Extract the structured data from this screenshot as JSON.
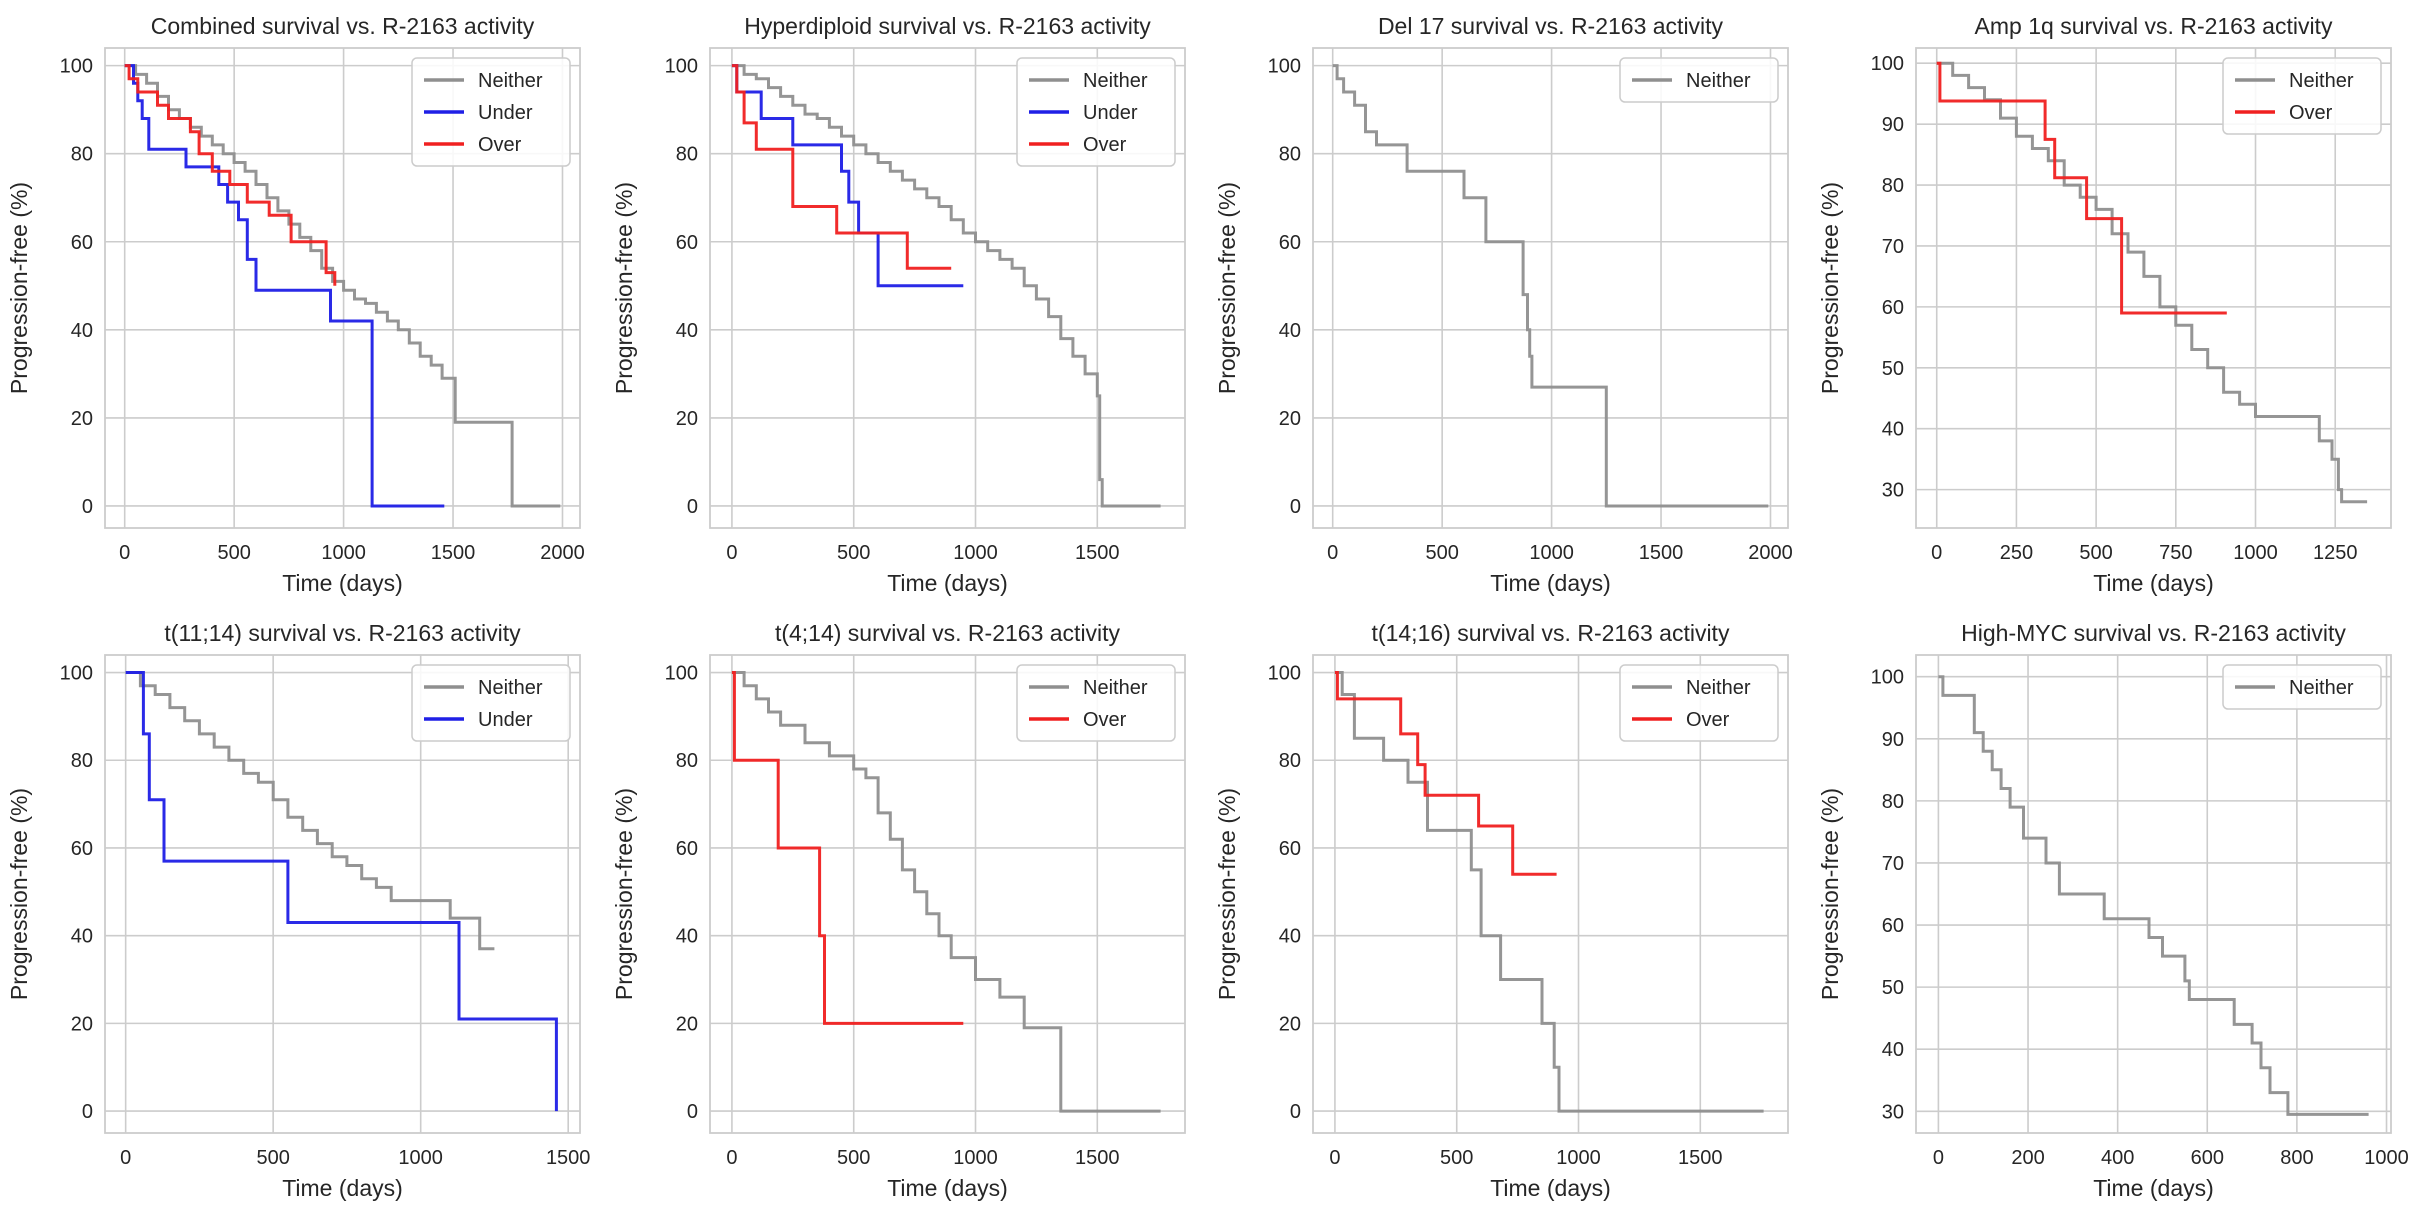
{
  "chart_data": [
    {
      "type": "line",
      "title": "Combined survival vs. R-2163 activity",
      "xlabel": "Time (days)",
      "ylabel": "Progression-free (%)",
      "xlim": [
        -90,
        2080
      ],
      "ylim": [
        -5,
        104
      ],
      "xticks": [
        0,
        500,
        1000,
        1500,
        2000
      ],
      "yticks": [
        0,
        20,
        40,
        60,
        80,
        100
      ],
      "grid": true,
      "legend": "top-right",
      "series": [
        {
          "name": "Neither",
          "color": "#8f8f8f",
          "x": [
            0,
            50,
            100,
            150,
            200,
            250,
            300,
            350,
            400,
            450,
            500,
            550,
            600,
            650,
            700,
            750,
            800,
            850,
            900,
            950,
            1000,
            1050,
            1100,
            1150,
            1200,
            1250,
            1300,
            1350,
            1400,
            1450,
            1500,
            1510,
            1650,
            1760,
            1770,
            1990
          ],
          "y": [
            100,
            98,
            96,
            93,
            90,
            88,
            86,
            84,
            82,
            80,
            78,
            76,
            73,
            70,
            67,
            64,
            61,
            58,
            54,
            51,
            49,
            47,
            46,
            44,
            42,
            40,
            37,
            34,
            32,
            29,
            29,
            19,
            19,
            19,
            0,
            0
          ]
        },
        {
          "name": "Under",
          "color": "#1f1fe6",
          "x": [
            0,
            40,
            60,
            80,
            110,
            280,
            430,
            470,
            520,
            560,
            600,
            940,
            1130,
            1460
          ],
          "y": [
            100,
            96,
            92,
            88,
            81,
            77,
            73,
            69,
            65,
            56,
            49,
            42,
            0,
            0
          ]
        },
        {
          "name": "Over",
          "color": "#f02020",
          "x": [
            0,
            20,
            60,
            150,
            200,
            300,
            340,
            400,
            480,
            560,
            660,
            760,
            920,
            960
          ],
          "y": [
            100,
            97,
            94,
            91,
            88,
            85,
            80,
            76,
            73,
            69,
            66,
            60,
            53,
            50
          ]
        }
      ]
    },
    {
      "type": "line",
      "title": "Hyperdiploid survival vs. R-2163 activity",
      "xlabel": "Time (days)",
      "ylabel": "Progression-free (%)",
      "xlim": [
        -90,
        1860
      ],
      "ylim": [
        -5,
        104
      ],
      "xticks": [
        0,
        500,
        1000,
        1500
      ],
      "yticks": [
        0,
        20,
        40,
        60,
        80,
        100
      ],
      "grid": true,
      "legend": "top-right",
      "series": [
        {
          "name": "Neither",
          "color": "#8f8f8f",
          "x": [
            0,
            50,
            100,
            150,
            200,
            250,
            300,
            350,
            400,
            450,
            500,
            550,
            600,
            650,
            700,
            750,
            800,
            850,
            900,
            950,
            1000,
            1050,
            1100,
            1150,
            1200,
            1250,
            1300,
            1350,
            1400,
            1450,
            1500,
            1510,
            1520,
            1760
          ],
          "y": [
            100,
            98,
            97,
            95,
            93,
            91,
            89,
            88,
            86,
            84,
            82,
            80,
            78,
            76,
            74,
            72,
            70,
            68,
            65,
            62,
            60,
            58,
            56,
            54,
            50,
            47,
            43,
            38,
            34,
            30,
            25,
            6,
            0,
            0
          ]
        },
        {
          "name": "Under",
          "color": "#1f1fe6",
          "x": [
            0,
            20,
            120,
            250,
            450,
            480,
            520,
            600,
            950
          ],
          "y": [
            100,
            94,
            88,
            82,
            76,
            69,
            62,
            50,
            50
          ]
        },
        {
          "name": "Over",
          "color": "#f02020",
          "x": [
            0,
            20,
            50,
            100,
            250,
            430,
            720,
            900
          ],
          "y": [
            100,
            94,
            87,
            81,
            68,
            62,
            54,
            54
          ]
        }
      ]
    },
    {
      "type": "line",
      "title": "Del 17 survival vs. R-2163 activity",
      "xlabel": "Time (days)",
      "ylabel": "Progression-free (%)",
      "xlim": [
        -90,
        2080
      ],
      "ylim": [
        -5,
        104
      ],
      "xticks": [
        0,
        500,
        1000,
        1500,
        2000
      ],
      "yticks": [
        0,
        20,
        40,
        60,
        80,
        100
      ],
      "grid": true,
      "legend": "top-right",
      "series": [
        {
          "name": "Neither",
          "color": "#8f8f8f",
          "x": [
            0,
            20,
            50,
            100,
            150,
            200,
            340,
            600,
            700,
            870,
            890,
            900,
            910,
            1250,
            1990
          ],
          "y": [
            100,
            97,
            94,
            91,
            85,
            82,
            76,
            70,
            60,
            48,
            40,
            34,
            27,
            0,
            0
          ]
        }
      ]
    },
    {
      "type": "line",
      "title": "Amp 1q survival vs. R-2163 activity",
      "xlabel": "Time (days)",
      "ylabel": "Progression-free (%)",
      "xlim": [
        -65,
        1425
      ],
      "ylim": [
        23.7,
        102.5
      ],
      "xticks": [
        0,
        250,
        500,
        750,
        1000,
        1250
      ],
      "yticks": [
        30,
        40,
        50,
        60,
        70,
        80,
        90,
        100
      ],
      "grid": true,
      "legend": "top-right",
      "series": [
        {
          "name": "Neither",
          "color": "#8f8f8f",
          "x": [
            0,
            50,
            100,
            150,
            200,
            250,
            300,
            350,
            400,
            450,
            500,
            550,
            600,
            650,
            700,
            750,
            800,
            850,
            900,
            950,
            1000,
            1200,
            1240,
            1260,
            1270,
            1350
          ],
          "y": [
            100,
            98,
            96,
            94,
            91,
            88,
            86,
            84,
            80,
            78,
            76,
            72,
            69,
            65,
            60,
            57,
            53,
            50,
            46,
            44,
            42,
            38,
            35,
            30,
            28,
            28
          ]
        },
        {
          "name": "Over",
          "color": "#f02020",
          "x": [
            0,
            10,
            340,
            370,
            470,
            580,
            910
          ],
          "y": [
            100,
            93.8,
            87.5,
            81.2,
            74.5,
            59,
            59
          ]
        }
      ]
    },
    {
      "type": "line",
      "title": "t(11;14) survival vs. R-2163 activity",
      "xlabel": "Time (days)",
      "ylabel": "Progression-free (%)",
      "xlim": [
        -70,
        1540
      ],
      "ylim": [
        -5,
        104
      ],
      "xticks": [
        0,
        500,
        1000,
        1500
      ],
      "yticks": [
        0,
        20,
        40,
        60,
        80,
        100
      ],
      "grid": true,
      "legend": "top-right",
      "series": [
        {
          "name": "Neither",
          "color": "#8f8f8f",
          "x": [
            0,
            50,
            100,
            150,
            200,
            250,
            300,
            350,
            400,
            450,
            500,
            550,
            600,
            650,
            700,
            750,
            800,
            850,
            900,
            1100,
            1200,
            1250
          ],
          "y": [
            100,
            97,
            95,
            92,
            89,
            86,
            83,
            80,
            77,
            75,
            71,
            67,
            64,
            61,
            58,
            56,
            53,
            51,
            48,
            44,
            37,
            37
          ]
        },
        {
          "name": "Under",
          "color": "#1f1fe6",
          "x": [
            0,
            60,
            80,
            130,
            550,
            1130,
            1460
          ],
          "y": [
            100,
            86,
            71,
            57,
            43,
            21,
            0
          ]
        }
      ]
    },
    {
      "type": "line",
      "title": "t(4;14) survival vs. R-2163 activity",
      "xlabel": "Time (days)",
      "ylabel": "Progression-free (%)",
      "xlim": [
        -90,
        1860
      ],
      "ylim": [
        -5,
        104
      ],
      "xticks": [
        0,
        500,
        1000,
        1500
      ],
      "yticks": [
        0,
        20,
        40,
        60,
        80,
        100
      ],
      "grid": true,
      "legend": "top-right",
      "series": [
        {
          "name": "Neither",
          "color": "#8f8f8f",
          "x": [
            0,
            50,
            100,
            150,
            200,
            300,
            400,
            500,
            550,
            600,
            650,
            700,
            750,
            800,
            850,
            900,
            1000,
            1100,
            1200,
            1350,
            1760
          ],
          "y": [
            100,
            97,
            94,
            91,
            88,
            84,
            81,
            78,
            76,
            68,
            62,
            55,
            50,
            45,
            40,
            35,
            30,
            26,
            19,
            0,
            0
          ]
        },
        {
          "name": "Over",
          "color": "#f02020",
          "x": [
            0,
            10,
            190,
            360,
            380,
            950
          ],
          "y": [
            100,
            80,
            60,
            40,
            20,
            20
          ]
        }
      ]
    },
    {
      "type": "line",
      "title": "t(14;16) survival vs. R-2163 activity",
      "xlabel": "Time (days)",
      "ylabel": "Progression-free (%)",
      "xlim": [
        -90,
        1860
      ],
      "ylim": [
        -5,
        104
      ],
      "xticks": [
        0,
        500,
        1000,
        1500
      ],
      "yticks": [
        0,
        20,
        40,
        60,
        80,
        100
      ],
      "grid": true,
      "legend": "top-right",
      "series": [
        {
          "name": "Neither",
          "color": "#8f8f8f",
          "x": [
            0,
            30,
            80,
            200,
            300,
            380,
            550,
            560,
            600,
            680,
            850,
            900,
            920,
            1760
          ],
          "y": [
            100,
            95,
            85,
            80,
            75,
            64,
            64,
            55,
            40,
            30,
            20,
            10,
            0,
            0
          ]
        },
        {
          "name": "Over",
          "color": "#f02020",
          "x": [
            0,
            10,
            270,
            340,
            370,
            590,
            730,
            910
          ],
          "y": [
            100,
            94,
            86,
            79,
            72,
            65,
            54,
            54
          ]
        }
      ]
    },
    {
      "type": "line",
      "title": "High-MYC survival vs. R-2163 activity",
      "xlabel": "Time (days)",
      "ylabel": "Progression-free (%)",
      "xlim": [
        -50,
        1010
      ],
      "ylim": [
        26.5,
        103.5
      ],
      "xticks": [
        0,
        200,
        400,
        600,
        800,
        1000
      ],
      "yticks": [
        30,
        40,
        50,
        60,
        70,
        80,
        90,
        100
      ],
      "grid": true,
      "legend": "top-right",
      "series": [
        {
          "name": "Neither",
          "color": "#8f8f8f",
          "x": [
            0,
            10,
            80,
            100,
            120,
            140,
            160,
            190,
            240,
            270,
            370,
            470,
            500,
            550,
            560,
            660,
            700,
            720,
            740,
            780,
            960
          ],
          "y": [
            100,
            97,
            91,
            88,
            85,
            82,
            79,
            74,
            70,
            65,
            61,
            58,
            55,
            51,
            48,
            44,
            41,
            37,
            33,
            29.5,
            29.5
          ]
        }
      ]
    }
  ]
}
